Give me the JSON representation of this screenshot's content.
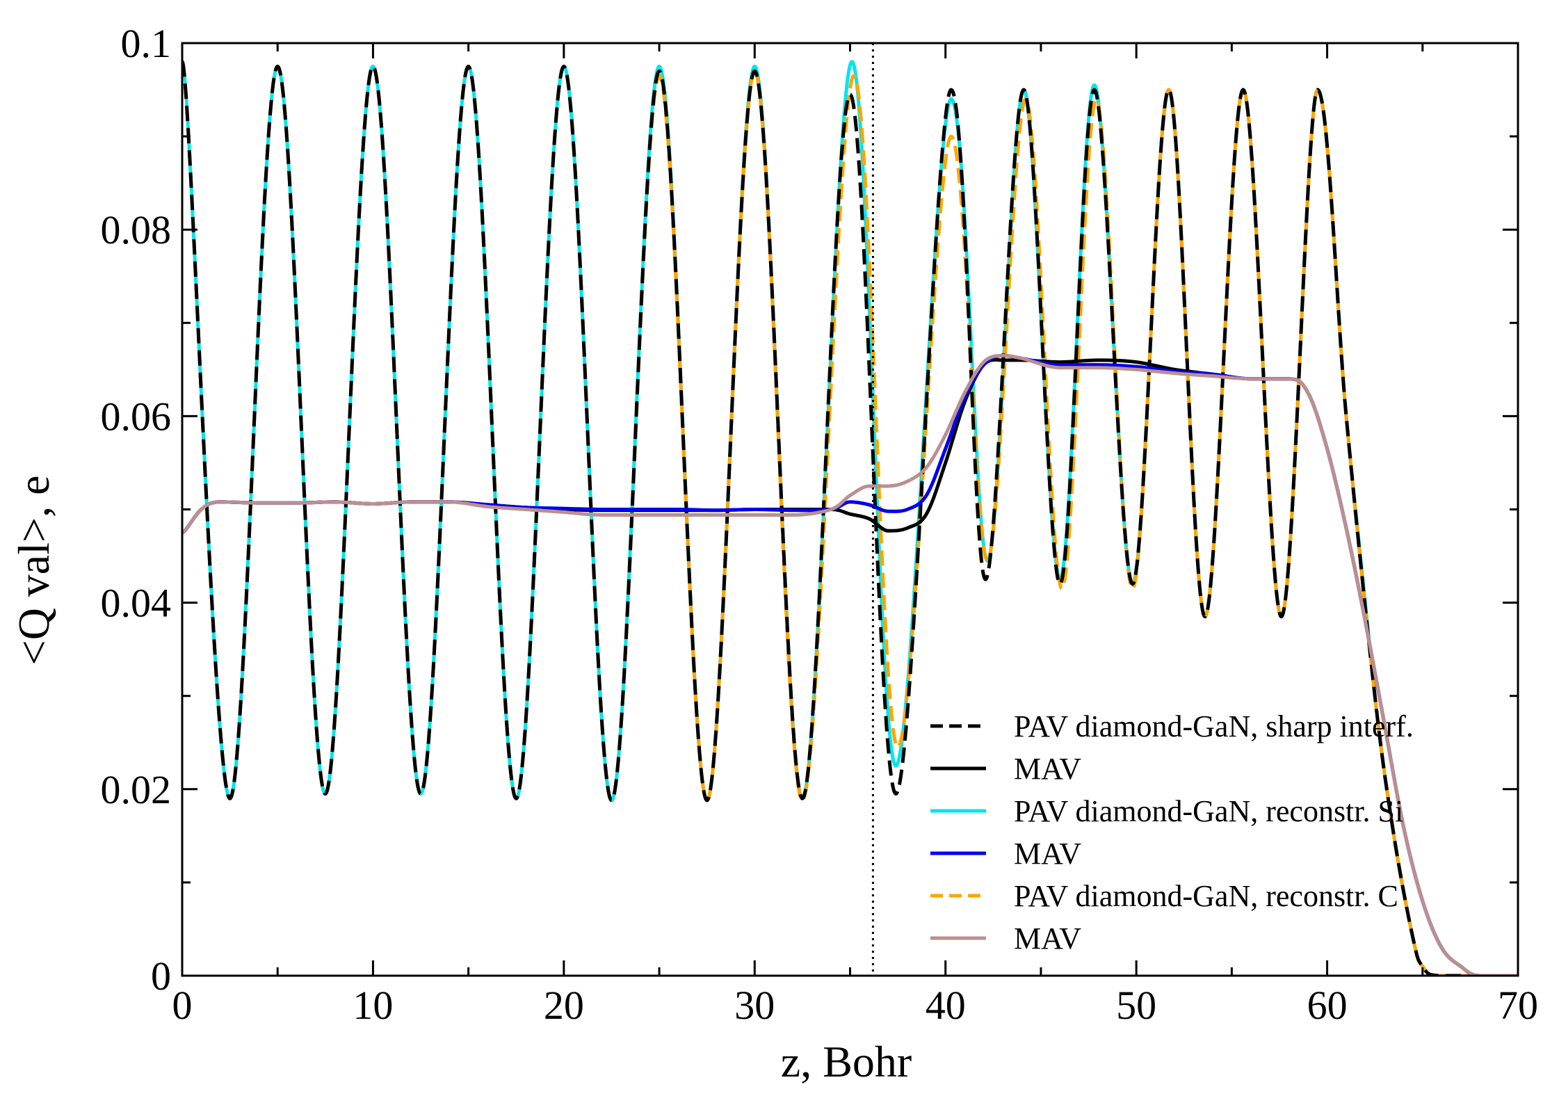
{
  "chart_data": {
    "type": "line",
    "title": "",
    "xlabel": "z, Bohr",
    "ylabel": "<Q val>, e",
    "xlim": [
      0,
      70
    ],
    "ylim": [
      0,
      0.1
    ],
    "xticks": [
      0,
      10,
      20,
      30,
      40,
      50,
      60,
      70
    ],
    "xtick_labels": [
      "0",
      "10",
      "20",
      "30",
      "40",
      "50",
      "60",
      "70"
    ],
    "yticks": [
      0,
      0.02,
      0.04,
      0.06,
      0.08,
      0.1
    ],
    "ytick_labels": [
      "0",
      "0.02",
      "0.04",
      "0.06",
      "0.08",
      "0.1"
    ],
    "grid": false,
    "legend_position": "bottom-right",
    "interface_line": {
      "x": 36.2,
      "style": "dotted",
      "color": "#000000"
    },
    "series": [
      {
        "name": "PAV diamond-GaN, sharp interf.",
        "color": "#000000",
        "dash": "dashed",
        "x": [
          0,
          2.5,
          5,
          7.5,
          10,
          12.5,
          15,
          17.5,
          20,
          22.5,
          25,
          27.5,
          30,
          32.5,
          35,
          37.4,
          40.3,
          42.1,
          44.1,
          46,
          47.8,
          49.8,
          51.7,
          53.6,
          55.6,
          57.6,
          59.5,
          61,
          62.5,
          63.5,
          64.5,
          65,
          66,
          70
        ],
        "y": [
          0.098,
          0.019,
          0.0975,
          0.0195,
          0.0975,
          0.0195,
          0.0975,
          0.019,
          0.0975,
          0.0188,
          0.097,
          0.0188,
          0.097,
          0.019,
          0.0945,
          0.0195,
          0.095,
          0.0425,
          0.095,
          0.042,
          0.095,
          0.042,
          0.095,
          0.0385,
          0.095,
          0.0385,
          0.095,
          0.06,
          0.03,
          0.015,
          0.004,
          0.001,
          0,
          0
        ]
      },
      {
        "name": "MAV",
        "color": "#000000",
        "dash": "solid",
        "x": [
          0,
          1,
          2,
          4,
          6,
          8,
          10,
          12,
          14,
          16,
          18,
          20,
          22,
          24,
          26,
          28,
          30,
          32,
          34,
          35,
          36,
          37,
          38,
          39,
          40,
          41,
          42,
          43,
          44,
          46,
          48,
          50,
          52,
          54,
          56,
          58,
          59,
          60,
          61,
          62,
          63,
          64,
          65,
          66,
          67,
          68,
          70
        ],
        "y": [
          0.0475,
          0.05,
          0.0508,
          0.0507,
          0.0507,
          0.0508,
          0.0506,
          0.0508,
          0.0508,
          0.0505,
          0.0502,
          0.05,
          0.0499,
          0.0499,
          0.0499,
          0.0499,
          0.05,
          0.05,
          0.05,
          0.0495,
          0.049,
          0.0477,
          0.048,
          0.0495,
          0.055,
          0.0615,
          0.0655,
          0.066,
          0.066,
          0.0658,
          0.066,
          0.0658,
          0.065,
          0.0645,
          0.064,
          0.064,
          0.0625,
          0.0565,
          0.048,
          0.038,
          0.027,
          0.016,
          0.008,
          0.003,
          0.001,
          0,
          0
        ]
      },
      {
        "name": "PAV diamond-GaN, reconstr. Si",
        "color": "#00e5ee",
        "dash": "solid",
        "x": [
          0,
          2.5,
          5,
          7.5,
          10,
          12.5,
          15,
          17.5,
          20,
          22.5,
          25,
          27.5,
          30,
          32.5,
          35.1,
          37.4,
          40.3,
          42.2,
          44.1,
          46,
          47.8,
          49.8,
          51.7,
          53.6,
          55.6,
          57.6,
          59.5,
          61,
          62.5,
          63.5,
          64.5,
          65,
          66,
          70
        ],
        "y": [
          0.098,
          0.019,
          0.0975,
          0.0195,
          0.0975,
          0.0195,
          0.0975,
          0.019,
          0.0975,
          0.0188,
          0.0975,
          0.0188,
          0.0975,
          0.019,
          0.098,
          0.0225,
          0.094,
          0.0445,
          0.095,
          0.0425,
          0.0955,
          0.042,
          0.095,
          0.0385,
          0.095,
          0.0385,
          0.095,
          0.06,
          0.03,
          0.015,
          0.004,
          0.001,
          0,
          0
        ]
      },
      {
        "name": "MAV",
        "color": "#0000ee",
        "dash": "solid",
        "x": [
          0,
          1,
          2,
          4,
          6,
          8,
          10,
          12,
          14,
          16,
          18,
          20,
          22,
          24,
          26,
          28,
          30,
          32,
          34,
          35,
          36,
          37,
          38,
          39,
          40,
          41,
          42,
          43,
          44,
          46,
          48,
          50,
          52,
          54,
          56,
          58,
          59,
          60,
          61,
          62,
          63,
          64,
          65,
          66,
          67,
          68,
          70
        ],
        "y": [
          0.0475,
          0.05,
          0.0508,
          0.0507,
          0.0507,
          0.0508,
          0.0506,
          0.0508,
          0.0508,
          0.0505,
          0.0502,
          0.0501,
          0.05,
          0.05,
          0.05,
          0.0499,
          0.05,
          0.0499,
          0.05,
          0.0508,
          0.0505,
          0.0498,
          0.05,
          0.0515,
          0.0565,
          0.062,
          0.0655,
          0.0665,
          0.0662,
          0.0655,
          0.0655,
          0.0653,
          0.0648,
          0.0645,
          0.064,
          0.064,
          0.0625,
          0.0565,
          0.048,
          0.038,
          0.027,
          0.016,
          0.008,
          0.003,
          0.001,
          0,
          0
        ]
      },
      {
        "name": "PAV diamond-GaN, reconstr. C",
        "color": "#ffa500",
        "dash": "dashed",
        "x": [
          0,
          2.5,
          5,
          7.5,
          10,
          12.5,
          15,
          17.5,
          20,
          22.5,
          25,
          27.5,
          30,
          32.5,
          35.2,
          37.5,
          40.3,
          42.2,
          44.2,
          46.1,
          47.9,
          49.8,
          51.7,
          53.6,
          55.6,
          57.6,
          59.5,
          61,
          62.5,
          63.5,
          64.5,
          65,
          66,
          70
        ],
        "y": [
          0.098,
          0.019,
          0.0975,
          0.0195,
          0.0975,
          0.0195,
          0.0975,
          0.019,
          0.0975,
          0.0188,
          0.0965,
          0.0188,
          0.097,
          0.0188,
          0.0965,
          0.0245,
          0.09,
          0.0445,
          0.094,
          0.0415,
          0.094,
          0.0415,
          0.095,
          0.0385,
          0.095,
          0.0385,
          0.095,
          0.06,
          0.03,
          0.015,
          0.004,
          0.001,
          0,
          0
        ]
      },
      {
        "name": "MAV",
        "color": "#bc8f8f",
        "dash": "solid",
        "x": [
          0,
          1,
          2,
          4,
          6,
          8,
          10,
          12,
          14,
          16,
          18,
          20,
          22,
          24,
          26,
          28,
          30,
          32,
          34,
          35,
          36,
          37,
          38,
          39,
          40,
          41,
          42,
          43,
          44,
          46,
          48,
          50,
          52,
          54,
          56,
          58,
          59,
          60,
          61,
          62,
          63,
          64,
          65,
          66,
          67,
          68,
          70
        ],
        "y": [
          0.0475,
          0.05,
          0.0508,
          0.0507,
          0.0507,
          0.0508,
          0.0506,
          0.0508,
          0.0508,
          0.0503,
          0.05,
          0.0497,
          0.0494,
          0.0494,
          0.0494,
          0.0494,
          0.0494,
          0.0494,
          0.05,
          0.0515,
          0.0525,
          0.0525,
          0.053,
          0.0545,
          0.058,
          0.0625,
          0.0658,
          0.0665,
          0.0662,
          0.0652,
          0.0652,
          0.065,
          0.0646,
          0.0643,
          0.064,
          0.064,
          0.0625,
          0.0565,
          0.048,
          0.038,
          0.027,
          0.016,
          0.008,
          0.003,
          0.001,
          0,
          0
        ]
      }
    ]
  }
}
